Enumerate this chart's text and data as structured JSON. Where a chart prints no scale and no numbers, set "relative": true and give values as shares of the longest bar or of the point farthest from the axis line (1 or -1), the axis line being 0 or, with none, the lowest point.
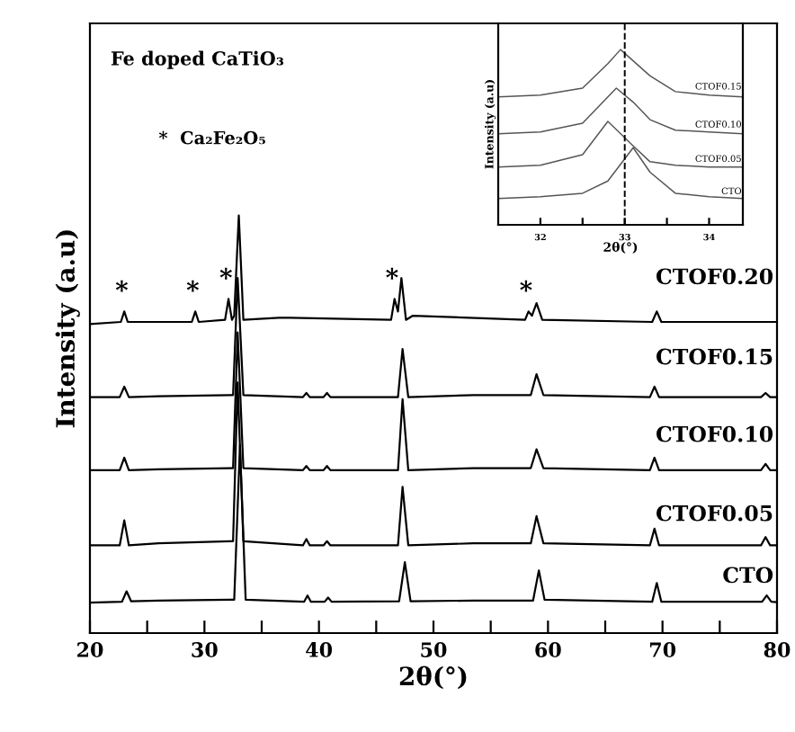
{
  "chart_data": [
    {
      "type": "line",
      "relative": true,
      "xlabel": "2θ(°)",
      "ylabel": "Intensity (a.u)",
      "xlim": [
        20,
        80
      ],
      "xticks": [
        20,
        {
          "value": 25,
          "label": null
        },
        30,
        {
          "value": 35,
          "label": null
        },
        40,
        {
          "value": 45,
          "label": null
        },
        50,
        {
          "value": 55,
          "label": null
        },
        60,
        {
          "value": 65,
          "label": null
        },
        70,
        {
          "value": 75,
          "label": null
        },
        80
      ],
      "grid": false,
      "legend": false,
      "marker": "none",
      "line_style": "solid",
      "annotations": [
        "Fe doped CaTiO₃",
        "*  Ca₂Fe₂O₅",
        {
          "text": "*",
          "x": 23.0,
          "y": 0.77
        },
        {
          "text": "*",
          "x": 29.2,
          "y": 0.77
        },
        {
          "text": "*",
          "x": 32.1,
          "y": 0.8
        },
        {
          "text": "*",
          "x": 46.6,
          "y": 0.8
        },
        {
          "text": "*",
          "x": 58.3,
          "y": 0.77
        }
      ],
      "series": [
        {
          "name": "CTO",
          "color": "#000000",
          "x": [
            20,
            22.8,
            23.2,
            23.6,
            26,
            32.6,
            33.1,
            33.6,
            38.7,
            39,
            39.3,
            40.5,
            40.8,
            41.1,
            47.0,
            47.5,
            48.0,
            53.5,
            58.7,
            59.2,
            59.7,
            69.1,
            69.5,
            69.9,
            78.7,
            79.1,
            79.5,
            80
          ],
          "values": [
            0.073,
            0.075,
            0.1,
            0.076,
            0.078,
            0.08,
            0.45,
            0.08,
            0.075,
            0.09,
            0.075,
            0.075,
            0.085,
            0.075,
            0.076,
            0.17,
            0.076,
            0.078,
            0.078,
            0.15,
            0.08,
            0.075,
            0.12,
            0.075,
            0.075,
            0.09,
            0.075,
            0.074
          ]
        },
        {
          "name": "CTOF0.05",
          "color": "#000000",
          "x": [
            20,
            22.6,
            23.0,
            23.4,
            26,
            32.5,
            32.9,
            33.4,
            38.6,
            38.9,
            39.2,
            40.4,
            40.7,
            41.0,
            46.9,
            47.3,
            47.8,
            53.5,
            58.5,
            59.0,
            59.6,
            68.9,
            69.3,
            69.7,
            78.6,
            79.0,
            79.4,
            80
          ],
          "values": [
            0.21,
            0.21,
            0.27,
            0.21,
            0.215,
            0.22,
            0.6,
            0.22,
            0.21,
            0.225,
            0.21,
            0.21,
            0.22,
            0.21,
            0.21,
            0.35,
            0.21,
            0.215,
            0.215,
            0.28,
            0.215,
            0.21,
            0.25,
            0.21,
            0.21,
            0.23,
            0.21,
            0.21
          ]
        },
        {
          "name": "CTOF0.10",
          "color": "#000000",
          "x": [
            20,
            22.6,
            23.0,
            23.4,
            26,
            32.5,
            32.9,
            33.4,
            38.6,
            38.9,
            39.2,
            40.4,
            40.7,
            41.0,
            46.9,
            47.3,
            47.8,
            53.5,
            58.5,
            59.0,
            59.6,
            68.9,
            69.3,
            69.7,
            78.6,
            79.0,
            79.4,
            80
          ],
          "values": [
            0.39,
            0.39,
            0.42,
            0.39,
            0.392,
            0.395,
            0.72,
            0.395,
            0.39,
            0.4,
            0.39,
            0.39,
            0.4,
            0.39,
            0.39,
            0.56,
            0.39,
            0.395,
            0.395,
            0.44,
            0.395,
            0.39,
            0.42,
            0.39,
            0.39,
            0.405,
            0.39,
            0.39
          ]
        },
        {
          "name": "CTOF0.15",
          "color": "#000000",
          "x": [
            20,
            22.6,
            23.0,
            23.4,
            26,
            32.5,
            32.9,
            33.4,
            38.6,
            38.9,
            39.2,
            40.4,
            40.7,
            41.0,
            46.9,
            47.3,
            47.8,
            53.5,
            58.5,
            59.0,
            59.6,
            68.9,
            69.3,
            69.7,
            78.6,
            79.0,
            79.4,
            80
          ],
          "values": [
            0.565,
            0.565,
            0.59,
            0.565,
            0.567,
            0.57,
            0.85,
            0.57,
            0.565,
            0.575,
            0.565,
            0.565,
            0.575,
            0.565,
            0.565,
            0.68,
            0.565,
            0.57,
            0.57,
            0.62,
            0.57,
            0.565,
            0.59,
            0.565,
            0.565,
            0.575,
            0.565,
            0.565
          ]
        },
        {
          "name": "CTOF0.20",
          "color": "#000000",
          "x": [
            20,
            22.7,
            23.0,
            23.3,
            28.9,
            29.2,
            29.5,
            31.8,
            32.1,
            32.4,
            32.6,
            33.0,
            33.4,
            36.5,
            37.5,
            46.3,
            46.6,
            46.9,
            47.2,
            47.6,
            48.2,
            58.0,
            58.3,
            58.6,
            59.0,
            59.5,
            69.1,
            69.5,
            69.9,
            80
          ],
          "values": [
            0.74,
            0.745,
            0.77,
            0.745,
            0.745,
            0.77,
            0.745,
            0.75,
            0.8,
            0.75,
            0.76,
            1.0,
            0.75,
            0.755,
            0.755,
            0.75,
            0.8,
            0.77,
            0.85,
            0.75,
            0.76,
            0.75,
            0.77,
            0.76,
            0.79,
            0.75,
            0.745,
            0.77,
            0.745,
            0.745
          ]
        }
      ]
    },
    {
      "type": "line",
      "relative": true,
      "xlabel": "2θ(°)",
      "ylabel": "Intensity (a.u)",
      "xlim": [
        31.5,
        34.4
      ],
      "xticks": [
        32,
        {
          "value": 32.5,
          "label": null
        },
        33,
        {
          "value": 33.5,
          "label": null
        },
        34
      ],
      "grid": false,
      "legend": false,
      "marker": "none",
      "line_style": "solid",
      "ref_lines": [
        {
          "axis": "x",
          "value": 33,
          "line_style": "dashed",
          "color": "#000000"
        }
      ],
      "series": [
        {
          "name": "CTO",
          "color": "#555555",
          "x": [
            31.5,
            32.0,
            32.5,
            32.8,
            33.1,
            33.3,
            33.6,
            34.0,
            34.4
          ],
          "values": [
            0.15,
            0.16,
            0.18,
            0.25,
            0.44,
            0.3,
            0.18,
            0.16,
            0.15
          ]
        },
        {
          "name": "CTOF0.05",
          "color": "#555555",
          "x": [
            31.5,
            32.0,
            32.5,
            32.8,
            33.1,
            33.3,
            33.6,
            34.0,
            34.4
          ],
          "values": [
            0.33,
            0.34,
            0.4,
            0.59,
            0.45,
            0.36,
            0.34,
            0.33,
            0.33
          ]
        },
        {
          "name": "CTOF0.10",
          "color": "#555555",
          "x": [
            31.5,
            32.0,
            32.5,
            32.9,
            33.1,
            33.3,
            33.6,
            34.0,
            34.4
          ],
          "values": [
            0.52,
            0.53,
            0.58,
            0.78,
            0.7,
            0.6,
            0.54,
            0.53,
            0.52
          ]
        },
        {
          "name": "CTOF0.15",
          "color": "#555555",
          "x": [
            31.5,
            32.0,
            32.5,
            32.8,
            32.95,
            33.3,
            33.6,
            34.0,
            34.4
          ],
          "values": [
            0.73,
            0.74,
            0.78,
            0.92,
            1.0,
            0.85,
            0.76,
            0.74,
            0.73
          ]
        }
      ]
    }
  ]
}
